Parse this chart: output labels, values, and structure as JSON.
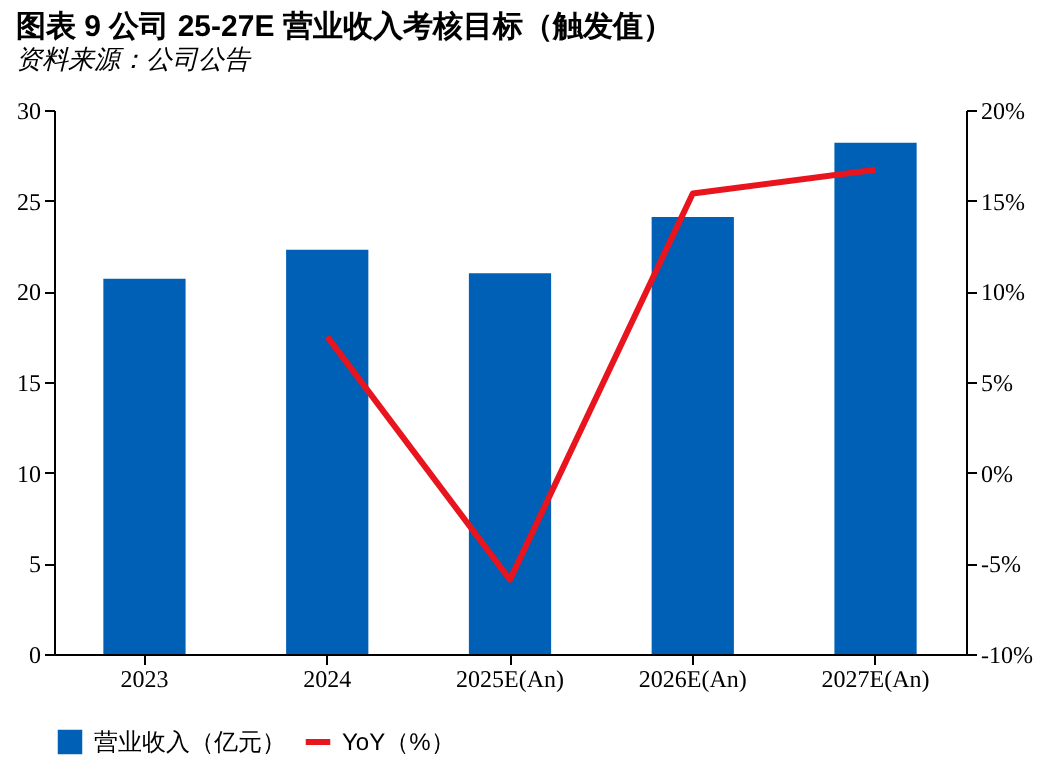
{
  "chart_data": {
    "type": "bar",
    "title": "图表 9 公司 25-27E 营业收入考核目标（触发值）",
    "categories": [
      "2023",
      "2024",
      "2025E(An)",
      "2026E(An)",
      "2027E(An)"
    ],
    "series": [
      {
        "name": "营业收入（亿元）",
        "color": "#0060b6",
        "values": [
          20.7,
          22.3,
          21.0,
          24.1,
          28.2
        ]
      },
      {
        "name": "YoY（%）",
        "type": "line",
        "axis": "y2",
        "color": "#e8141e",
        "values": [
          null,
          7.5,
          -5.9,
          15.4,
          16.7
        ]
      }
    ],
    "ylim": [
      0,
      30
    ],
    "yticks": [
      0,
      5,
      10,
      15,
      20,
      25,
      30
    ],
    "y2lim": [
      -10,
      20
    ],
    "y2ticks": [
      {
        "value": -10,
        "label": "-10%"
      },
      {
        "value": -5,
        "label": "-5%"
      },
      {
        "value": 0,
        "label": "0%"
      },
      {
        "value": 5,
        "label": "5%"
      },
      {
        "value": 10,
        "label": "10%"
      },
      {
        "value": 15,
        "label": "15%"
      },
      {
        "value": 20,
        "label": "20%"
      }
    ],
    "grid": false,
    "legend": "bottom",
    "marker": "none",
    "line_style": "solid",
    "annotations": [
      "资料来源：公司公告"
    ]
  }
}
